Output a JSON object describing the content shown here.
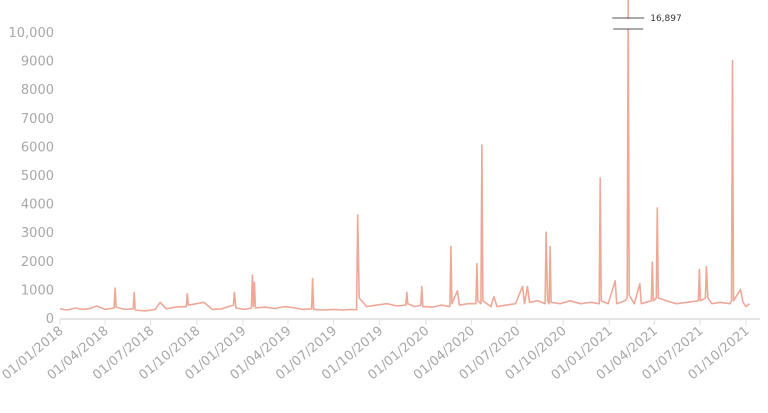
{
  "chart_data": {
    "type": "line",
    "title": "",
    "xlabel": "",
    "ylabel": "",
    "ylim": [
      0,
      10000
    ],
    "y_ticks": [
      0,
      1000,
      2000,
      3000,
      4000,
      5000,
      6000,
      7000,
      8000,
      9000,
      10000
    ],
    "y_tick_labels": [
      "0",
      "1000",
      "2000",
      "3000",
      "4000",
      "5000",
      "6000",
      "7000",
      "8000",
      "9000",
      "10,000"
    ],
    "x_range": [
      "2018-01-01",
      "2021-10-10"
    ],
    "x_ticks": [
      "2018-01-01",
      "2018-04-01",
      "2018-07-01",
      "2018-10-01",
      "2019-01-01",
      "2019-04-01",
      "2019-07-01",
      "2019-10-01",
      "2020-01-01",
      "2020-04-01",
      "2020-07-01",
      "2020-10-01",
      "2021-01-01",
      "2021-04-01",
      "2021-07-01",
      "2021-10-01"
    ],
    "x_tick_labels": [
      "01/01/2018",
      "01/04/2018",
      "01/07/2018",
      "01/10/2018",
      "01/01/2019",
      "01/04/2019",
      "01/07/2019",
      "01/10/2019",
      "01/01/2020",
      "01/04/2020",
      "01/07/2020",
      "01/10/2020",
      "01/01/2021",
      "01/04/2021",
      "01/07/2021",
      "01/10/2021"
    ],
    "grid": false,
    "line_color": "#eea898",
    "axis_break": {
      "date": "2021-02-08",
      "value": 16897,
      "label": "16,897"
    },
    "points": [
      [
        "2018-01-01",
        320
      ],
      [
        "2018-01-15",
        280
      ],
      [
        "2018-02-01",
        350
      ],
      [
        "2018-02-15",
        300
      ],
      [
        "2018-03-01",
        330
      ],
      [
        "2018-03-15",
        420
      ],
      [
        "2018-04-01",
        300
      ],
      [
        "2018-04-19",
        350
      ],
      [
        "2018-04-21",
        1050
      ],
      [
        "2018-04-23",
        380
      ],
      [
        "2018-05-10",
        300
      ],
      [
        "2018-05-27",
        320
      ],
      [
        "2018-05-29",
        900
      ],
      [
        "2018-05-31",
        280
      ],
      [
        "2018-06-20",
        250
      ],
      [
        "2018-07-10",
        300
      ],
      [
        "2018-07-20",
        550
      ],
      [
        "2018-08-01",
        320
      ],
      [
        "2018-08-20",
        380
      ],
      [
        "2018-09-10",
        400
      ],
      [
        "2018-09-12",
        850
      ],
      [
        "2018-09-14",
        450
      ],
      [
        "2018-10-01",
        500
      ],
      [
        "2018-10-15",
        550
      ],
      [
        "2018-11-01",
        300
      ],
      [
        "2018-11-20",
        320
      ],
      [
        "2018-12-13",
        450
      ],
      [
        "2018-12-15",
        900
      ],
      [
        "2018-12-18",
        350
      ],
      [
        "2019-01-05",
        300
      ],
      [
        "2019-01-18",
        350
      ],
      [
        "2019-01-20",
        1500
      ],
      [
        "2019-01-22",
        400
      ],
      [
        "2019-01-24",
        1250
      ],
      [
        "2019-01-26",
        350
      ],
      [
        "2019-02-15",
        380
      ],
      [
        "2019-03-05",
        330
      ],
      [
        "2019-03-25",
        400
      ],
      [
        "2019-04-15",
        350
      ],
      [
        "2019-05-01",
        300
      ],
      [
        "2019-05-18",
        320
      ],
      [
        "2019-05-20",
        1380
      ],
      [
        "2019-05-22",
        300
      ],
      [
        "2019-06-10",
        280
      ],
      [
        "2019-07-01",
        300
      ],
      [
        "2019-07-20",
        280
      ],
      [
        "2019-08-05",
        300
      ],
      [
        "2019-08-16",
        280
      ],
      [
        "2019-08-18",
        3600
      ],
      [
        "2019-08-21",
        700
      ],
      [
        "2019-09-05",
        400
      ],
      [
        "2019-09-25",
        450
      ],
      [
        "2019-10-15",
        500
      ],
      [
        "2019-11-05",
        420
      ],
      [
        "2019-11-22",
        450
      ],
      [
        "2019-11-24",
        900
      ],
      [
        "2019-11-26",
        500
      ],
      [
        "2019-12-10",
        400
      ],
      [
        "2019-12-22",
        450
      ],
      [
        "2019-12-24",
        1100
      ],
      [
        "2019-12-26",
        400
      ],
      [
        "2020-01-15",
        380
      ],
      [
        "2020-02-01",
        450
      ],
      [
        "2020-02-18",
        400
      ],
      [
        "2020-02-20",
        2500
      ],
      [
        "2020-02-22",
        500
      ],
      [
        "2020-03-04",
        950
      ],
      [
        "2020-03-08",
        450
      ],
      [
        "2020-03-25",
        500
      ],
      [
        "2020-04-10",
        500
      ],
      [
        "2020-04-12",
        1900
      ],
      [
        "2020-04-14",
        600
      ],
      [
        "2020-04-20",
        500
      ],
      [
        "2020-04-22",
        6050
      ],
      [
        "2020-04-24",
        600
      ],
      [
        "2020-05-10",
        400
      ],
      [
        "2020-05-16",
        750
      ],
      [
        "2020-05-22",
        400
      ],
      [
        "2020-06-10",
        450
      ],
      [
        "2020-06-28",
        500
      ],
      [
        "2020-07-12",
        1100
      ],
      [
        "2020-07-16",
        500
      ],
      [
        "2020-07-22",
        1100
      ],
      [
        "2020-07-26",
        550
      ],
      [
        "2020-08-12",
        600
      ],
      [
        "2020-08-26",
        500
      ],
      [
        "2020-08-28",
        3000
      ],
      [
        "2020-08-31",
        600
      ],
      [
        "2020-09-03",
        500
      ],
      [
        "2020-09-05",
        2500
      ],
      [
        "2020-09-07",
        550
      ],
      [
        "2020-09-25",
        500
      ],
      [
        "2020-10-15",
        600
      ],
      [
        "2020-11-05",
        500
      ],
      [
        "2020-11-25",
        550
      ],
      [
        "2020-12-12",
        500
      ],
      [
        "2020-12-14",
        4900
      ],
      [
        "2020-12-16",
        600
      ],
      [
        "2020-12-30",
        500
      ],
      [
        "2021-01-13",
        1300
      ],
      [
        "2021-01-16",
        500
      ],
      [
        "2021-02-01",
        600
      ],
      [
        "2021-02-06",
        700
      ],
      [
        "2021-02-08",
        16897
      ],
      [
        "2021-02-10",
        800
      ],
      [
        "2021-02-20",
        500
      ],
      [
        "2021-03-03",
        1200
      ],
      [
        "2021-03-06",
        500
      ],
      [
        "2021-03-26",
        600
      ],
      [
        "2021-03-28",
        1950
      ],
      [
        "2021-03-30",
        600
      ],
      [
        "2021-04-05",
        700
      ],
      [
        "2021-04-07",
        3850
      ],
      [
        "2021-04-09",
        700
      ],
      [
        "2021-04-25",
        600
      ],
      [
        "2021-05-15",
        500
      ],
      [
        "2021-06-05",
        550
      ],
      [
        "2021-06-28",
        600
      ],
      [
        "2021-06-30",
        1700
      ],
      [
        "2021-07-02",
        600
      ],
      [
        "2021-07-12",
        700
      ],
      [
        "2021-07-14",
        1800
      ],
      [
        "2021-07-17",
        700
      ],
      [
        "2021-07-25",
        500
      ],
      [
        "2021-08-10",
        550
      ],
      [
        "2021-08-30",
        500
      ],
      [
        "2021-09-02",
        600
      ],
      [
        "2021-09-04",
        9000
      ],
      [
        "2021-09-06",
        600
      ],
      [
        "2021-09-20",
        1000
      ],
      [
        "2021-09-25",
        550
      ],
      [
        "2021-10-01",
        400
      ],
      [
        "2021-10-08",
        500
      ]
    ]
  }
}
